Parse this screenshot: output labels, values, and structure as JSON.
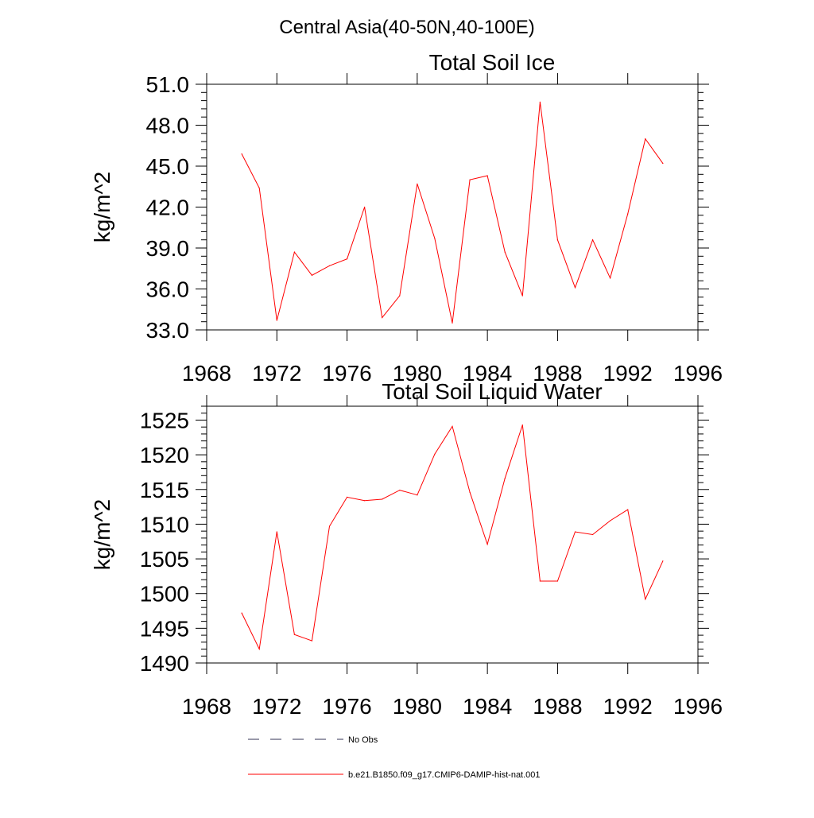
{
  "figure_title": "Central Asia(40-50N,40-100E)",
  "colors": {
    "series": "#ff0000",
    "no_obs": "#333355",
    "axes": "#000000"
  },
  "legend": [
    {
      "label": "No Obs",
      "style": "dashed"
    },
    {
      "label": "b.e21.B1850.f09_g17.CMIP6-DAMIP-hist-nat.001",
      "style": "solid"
    }
  ],
  "chart_data": [
    {
      "type": "line",
      "title": "Total Soil Ice",
      "xlabel": "",
      "ylabel": "kg/m^2",
      "xlim": [
        1968,
        1996
      ],
      "ylim": [
        33.0,
        51.0
      ],
      "x_ticks": [
        1968,
        1972,
        1976,
        1980,
        1984,
        1988,
        1992,
        1996
      ],
      "y_ticks": [
        "33.0",
        "36.0",
        "39.0",
        "42.0",
        "45.0",
        "48.0",
        "51.0"
      ],
      "grid": false,
      "legend_position": "bottom",
      "series": [
        {
          "name": "b.e21.B1850.f09_g17.CMIP6-DAMIP-hist-nat.001",
          "x": [
            1970,
            1971,
            1972,
            1973,
            1974,
            1975,
            1976,
            1977,
            1978,
            1979,
            1980,
            1981,
            1982,
            1983,
            1984,
            1985,
            1986,
            1987,
            1988,
            1989,
            1990,
            1991,
            1992,
            1993,
            1994
          ],
          "y": [
            45.9,
            43.4,
            33.7,
            38.7,
            37.0,
            37.7,
            38.2,
            42.0,
            33.9,
            35.5,
            43.7,
            39.7,
            33.5,
            44.0,
            44.3,
            38.7,
            35.5,
            49.7,
            39.6,
            36.1,
            39.6,
            36.8,
            41.5,
            47.0,
            45.2
          ]
        }
      ]
    },
    {
      "type": "line",
      "title": "Total Soil Liquid Water",
      "xlabel": "",
      "ylabel": "kg/m^2",
      "xlim": [
        1968,
        1996
      ],
      "ylim": [
        1490,
        1527
      ],
      "x_ticks": [
        1968,
        1972,
        1976,
        1980,
        1984,
        1988,
        1992,
        1996
      ],
      "y_ticks": [
        "1490",
        "1495",
        "1500",
        "1505",
        "1510",
        "1515",
        "1520",
        "1525"
      ],
      "grid": false,
      "legend_position": "bottom",
      "series": [
        {
          "name": "b.e21.B1850.f09_g17.CMIP6-DAMIP-hist-nat.001",
          "x": [
            1970,
            1971,
            1972,
            1973,
            1974,
            1975,
            1976,
            1977,
            1978,
            1979,
            1980,
            1981,
            1982,
            1983,
            1984,
            1985,
            1986,
            1987,
            1988,
            1989,
            1990,
            1991,
            1992,
            1993,
            1994
          ],
          "y": [
            1497.2,
            1492.0,
            1508.9,
            1494.1,
            1493.2,
            1509.7,
            1513.9,
            1513.4,
            1513.6,
            1514.9,
            1514.2,
            1520.1,
            1524.1,
            1514.6,
            1507.1,
            1516.6,
            1524.3,
            1501.8,
            1501.8,
            1508.9,
            1508.5,
            1510.5,
            1512.1,
            1499.2,
            1504.7
          ]
        }
      ]
    }
  ]
}
